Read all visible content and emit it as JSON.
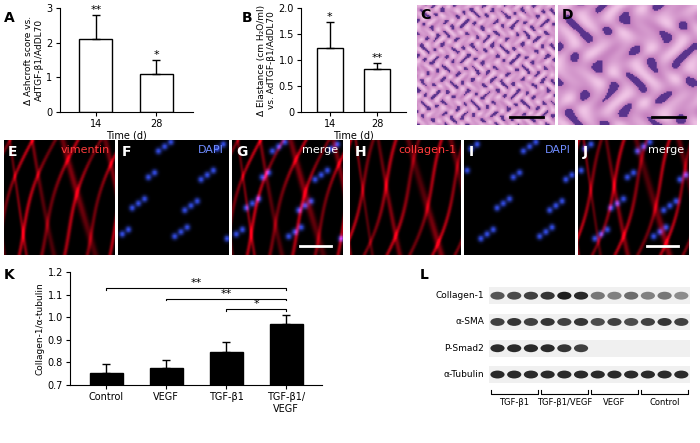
{
  "chart_data": [
    {
      "panel": "A",
      "type": "bar",
      "categories": [
        "14",
        "28"
      ],
      "values": [
        2.1,
        1.1
      ],
      "errors": [
        0.7,
        0.4
      ],
      "significance": [
        "**",
        "*"
      ],
      "x_label": "Time (d)",
      "y_label": "Δ Ashcroft score vs.\nAdTGF-β1/AdDL70",
      "ylim": [
        0,
        3
      ],
      "yticks": [
        0,
        1,
        2,
        3
      ],
      "color": "#ffffff"
    },
    {
      "panel": "B",
      "type": "bar",
      "categories": [
        "14",
        "28"
      ],
      "values": [
        1.23,
        0.83
      ],
      "errors": [
        0.5,
        0.12
      ],
      "significance": [
        "*",
        "**"
      ],
      "x_label": "Time (d)",
      "y_label": "Δ Elastance (cm H₂O/ml)\nvs. AdTGF-β1/AdDL70",
      "ylim": [
        0,
        2
      ],
      "yticks": [
        0,
        0.5,
        {
          "value": 1,
          "label": "1.0"
        },
        1.5,
        {
          "value": 2,
          "label": "2.0"
        }
      ],
      "color": "#ffffff"
    },
    {
      "panel": "K",
      "type": "bar",
      "categories": [
        "Control",
        "VEGF",
        "TGF-β1",
        "TGF-β1/\nVEGF"
      ],
      "values": [
        0.755,
        0.775,
        0.845,
        0.97
      ],
      "errors": [
        0.04,
        0.035,
        0.045,
        0.04
      ],
      "y_label": "Collagen-1/α-tubulin",
      "ylim": [
        0.7,
        1.2
      ],
      "yticks": [
        0.7,
        0.8,
        0.9,
        {
          "value": 1,
          "label": "1.0"
        },
        1.1,
        1.2
      ],
      "color": "#000000",
      "comparisons": [
        {
          "from": "Control",
          "to": "TGF-β1/\nVEGF",
          "label": "**"
        },
        {
          "from": "VEGF",
          "to": "TGF-β1/\nVEGF",
          "label": "**"
        },
        {
          "from": "TGF-β1",
          "to": "TGF-β1/\nVEGF",
          "label": "*"
        }
      ]
    }
  ],
  "histology": [
    {
      "panel": "C"
    },
    {
      "panel": "D"
    }
  ],
  "fluorescence": [
    {
      "panel": "E",
      "label": "vimentin",
      "color": "#ff3b3b"
    },
    {
      "panel": "F",
      "label": "DAPI",
      "color": "#6f8cff"
    },
    {
      "panel": "G",
      "label": "merge",
      "color": "#ffffff"
    },
    {
      "panel": "H",
      "label": "collagen-1",
      "color": "#ff3b3b"
    },
    {
      "panel": "I",
      "label": "DAPI",
      "color": "#6f8cff"
    },
    {
      "panel": "J",
      "label": "merge",
      "color": "#ffffff"
    }
  ],
  "blot": {
    "panel": "L",
    "rows": [
      "Collagen-1",
      "α-SMA",
      "P-Smad2",
      "α-Tubulin"
    ],
    "groups": [
      "TGF-β1",
      "TGF-β1/VEGF",
      "VEGF",
      "Control"
    ]
  }
}
